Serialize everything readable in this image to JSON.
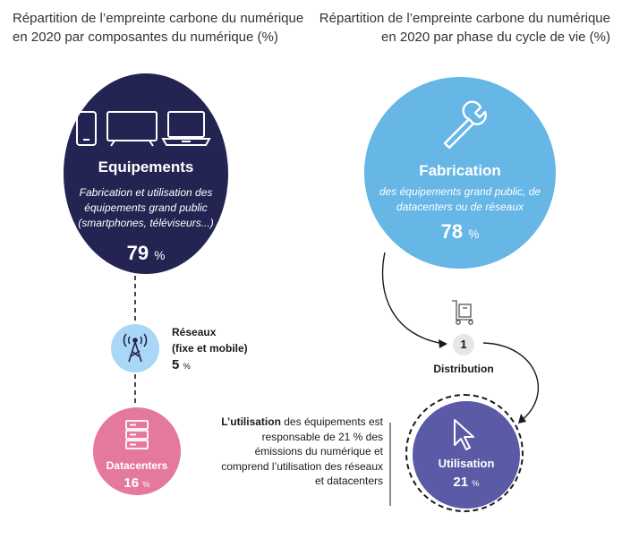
{
  "left": {
    "title": "Répartition de l’empreinte carbone du numérique en 2020 par composantes du numérique (%)",
    "equipements": {
      "name": "Equipements",
      "description": "Fabrication et utilisation des équipements grand public (smartphones, téléviseurs...)",
      "value": "79",
      "unit": "%"
    },
    "reseaux": {
      "name": "Réseaux",
      "sub": "(fixe et mobile)",
      "value": "5",
      "unit": "%"
    },
    "datacenters": {
      "name": "Datacenters",
      "value": "16",
      "unit": "%"
    }
  },
  "right": {
    "title": "Répartition de l’empreinte carbone du numérique en 2020 par phase du cycle de vie (%)",
    "fabrication": {
      "name": "Fabrication",
      "description": "des équipements grand public, de datacenters ou de réseaux",
      "value": "78",
      "unit": "%"
    },
    "distribution": {
      "number": "1",
      "name": "Distribution"
    },
    "utilisation": {
      "name": "Utilisation",
      "value": "21",
      "unit": "%"
    },
    "note": {
      "lead": "L’utilisation",
      "text": " des équipements est responsable de 21 % des émissions du numérique et comprend l’utilisation des réseaux et datacenters"
    }
  },
  "colors": {
    "equipements": "#232451",
    "fabrication": "#66b6e6",
    "reseaux": "#a8d8f5",
    "datacenters": "#e4799c",
    "utilisation": "#5a5aa6"
  },
  "icons": [
    "smartphone-icon",
    "television-icon",
    "laptop-icon",
    "wrench-icon",
    "antenna-tower-icon",
    "server-icon",
    "hand-truck-icon",
    "cursor-arrow-icon"
  ]
}
